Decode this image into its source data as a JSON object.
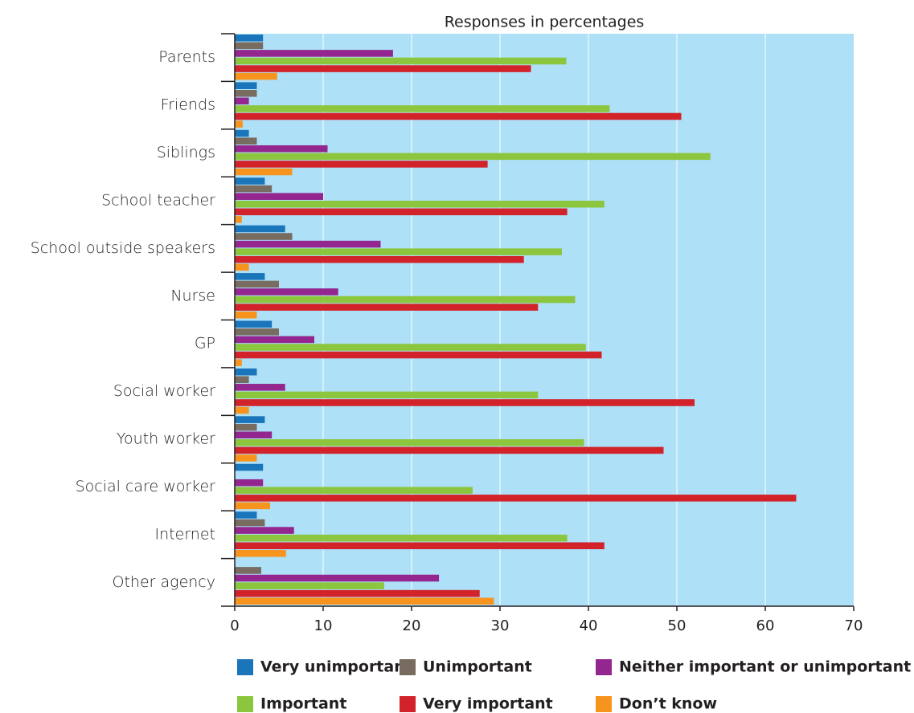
{
  "chart_data": {
    "type": "bar",
    "orientation": "horizontal",
    "title": "Responses in percentages",
    "categories": [
      "Parents",
      "Friends",
      "Siblings",
      "School teacher",
      "School outside speakers",
      "Nurse",
      "GP",
      "Social worker",
      "Youth worker",
      "Social care worker",
      "Internet",
      "Other agency"
    ],
    "series": [
      {
        "name": "Very unimportant",
        "color": "#1a75bb",
        "values": [
          3.2,
          2.5,
          1.6,
          3.4,
          5.7,
          3.4,
          4.2,
          2.5,
          3.4,
          3.2,
          2.5,
          0
        ]
      },
      {
        "name": "Unimportant",
        "color": "#786b5f",
        "values": [
          3.2,
          2.5,
          2.5,
          4.2,
          6.5,
          5,
          5,
          1.6,
          2.5,
          0,
          3.4,
          3
        ]
      },
      {
        "name": "Neither important or unimportant",
        "color": "#93278f",
        "values": [
          17.9,
          1.6,
          10.5,
          10,
          16.5,
          11.7,
          9,
          5.7,
          4.2,
          3.2,
          6.7,
          23.1
        ]
      },
      {
        "name": "Important",
        "color": "#8cc63f",
        "values": [
          37.5,
          42.4,
          53.8,
          41.8,
          37,
          38.5,
          39.7,
          34.3,
          39.5,
          26.9,
          37.6,
          16.9
        ]
      },
      {
        "name": "Very important",
        "color": "#d2232a",
        "values": [
          33.5,
          50.5,
          28.6,
          37.6,
          32.7,
          34.3,
          41.5,
          52,
          48.5,
          63.5,
          41.8,
          27.7
        ]
      },
      {
        "name": "Don’t know",
        "color": "#f7941d",
        "values": [
          4.8,
          0.9,
          6.5,
          0.8,
          1.6,
          2.5,
          0.8,
          1.6,
          2.5,
          4,
          5.8,
          29.3
        ]
      }
    ],
    "xlim": [
      0,
      70
    ],
    "xticks": [
      0,
      10,
      20,
      30,
      40,
      50,
      60,
      70
    ],
    "grid": true,
    "legend": "bottom"
  }
}
